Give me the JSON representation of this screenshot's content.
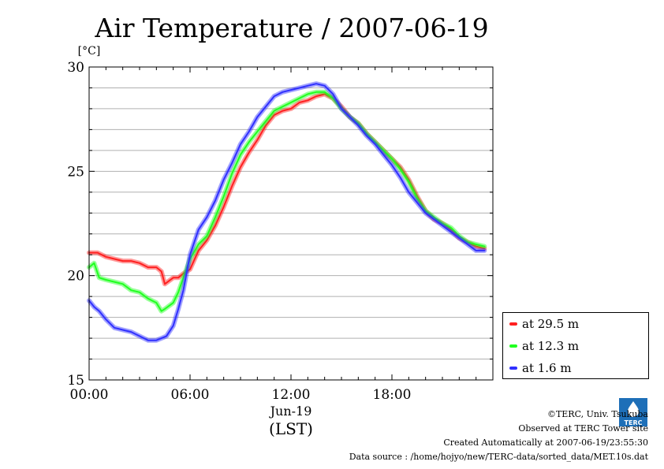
{
  "chart_data": {
    "type": "line",
    "title": "Air Temperature / 2007-06-19",
    "unit_label": "[°C]",
    "ylim": [
      15,
      30
    ],
    "yticks": [
      15,
      20,
      25,
      30
    ],
    "xlim": [
      0,
      24
    ],
    "xticks": [
      {
        "value": 0,
        "label": "00:00"
      },
      {
        "value": 6,
        "label": "06:00"
      },
      {
        "value": 12,
        "label": "12:00"
      },
      {
        "value": 18,
        "label": "18:00"
      }
    ],
    "date_label": "Jun-19",
    "time_zone_label": "(LST)",
    "grid": true,
    "legend_position": "bottom-right outside",
    "series": [
      {
        "name": "at 29.5 m",
        "color": "#ff2020",
        "x": [
          0,
          0.5,
          1,
          1.5,
          2,
          2.5,
          3,
          3.5,
          4,
          4.3,
          4.5,
          5,
          5.3,
          5.6,
          6,
          6.5,
          7,
          7.5,
          8,
          8.5,
          9,
          9.5,
          10,
          10.5,
          11,
          11.5,
          12,
          12.5,
          13,
          13.5,
          14,
          14.5,
          15,
          15.5,
          16,
          16.5,
          17,
          17.5,
          18,
          18.5,
          19,
          19.5,
          20,
          20.5,
          21,
          21.5,
          22,
          22.5,
          23,
          23.5
        ],
        "values": [
          21.1,
          21.1,
          20.9,
          20.8,
          20.7,
          20.7,
          20.6,
          20.4,
          20.4,
          20.2,
          19.6,
          19.9,
          19.9,
          20.1,
          20.3,
          21.2,
          21.7,
          22.4,
          23.3,
          24.3,
          25.2,
          25.9,
          26.5,
          27.2,
          27.7,
          27.9,
          28.0,
          28.3,
          28.4,
          28.6,
          28.7,
          28.5,
          28.1,
          27.6,
          27.3,
          26.8,
          26.4,
          26.0,
          25.6,
          25.2,
          24.6,
          23.8,
          23.1,
          22.7,
          22.5,
          22.2,
          21.8,
          21.6,
          21.4,
          21.3
        ]
      },
      {
        "name": "at 12.3 m",
        "color": "#20ff20",
        "x": [
          0,
          0.3,
          0.6,
          1,
          1.5,
          2,
          2.5,
          3,
          3.5,
          4,
          4.3,
          4.5,
          5,
          5.3,
          5.6,
          6,
          6.5,
          7,
          7.5,
          8,
          8.5,
          9,
          9.5,
          10,
          10.5,
          11,
          11.5,
          12,
          12.5,
          13,
          13.5,
          14,
          14.5,
          15,
          15.5,
          16,
          16.5,
          17,
          17.5,
          18,
          18.5,
          19,
          19.5,
          20,
          20.5,
          21,
          21.5,
          22,
          22.5,
          23,
          23.5
        ],
        "values": [
          20.4,
          20.6,
          19.9,
          19.8,
          19.7,
          19.6,
          19.3,
          19.2,
          18.9,
          18.7,
          18.3,
          18.4,
          18.7,
          19.2,
          19.9,
          20.8,
          21.5,
          21.9,
          22.8,
          23.8,
          24.9,
          25.8,
          26.4,
          26.9,
          27.4,
          27.9,
          28.1,
          28.3,
          28.5,
          28.7,
          28.8,
          28.8,
          28.5,
          28.0,
          27.6,
          27.3,
          26.8,
          26.4,
          26.0,
          25.6,
          25.1,
          24.5,
          23.7,
          23.1,
          22.8,
          22.5,
          22.3,
          21.9,
          21.6,
          21.5,
          21.4
        ]
      },
      {
        "name": "at 1.6 m",
        "color": "#3030ff",
        "x": [
          0,
          0.3,
          0.6,
          1,
          1.5,
          2,
          2.5,
          3,
          3.5,
          4,
          4.3,
          4.6,
          5,
          5.3,
          5.6,
          6,
          6.5,
          7,
          7.5,
          8,
          8.5,
          9,
          9.5,
          10,
          10.5,
          11,
          11.5,
          12,
          12.5,
          13,
          13.5,
          14,
          14.5,
          15,
          15.5,
          16,
          16.5,
          17,
          17.5,
          18,
          18.5,
          19,
          19.5,
          20,
          20.5,
          21,
          21.5,
          22,
          22.5,
          23,
          23.5
        ],
        "values": [
          18.8,
          18.5,
          18.3,
          17.9,
          17.5,
          17.4,
          17.3,
          17.1,
          16.9,
          16.9,
          17.0,
          17.1,
          17.6,
          18.4,
          19.3,
          21.0,
          22.2,
          22.8,
          23.6,
          24.6,
          25.4,
          26.3,
          26.9,
          27.6,
          28.1,
          28.6,
          28.8,
          28.9,
          29.0,
          29.1,
          29.2,
          29.1,
          28.7,
          28.0,
          27.6,
          27.2,
          26.7,
          26.3,
          25.8,
          25.3,
          24.7,
          24.0,
          23.5,
          23.0,
          22.7,
          22.4,
          22.1,
          21.8,
          21.5,
          21.2,
          21.2
        ]
      }
    ]
  },
  "footer": {
    "copyright": "©TERC, Univ. Tsukuba",
    "observed": "Observed at TERC Tower site",
    "created": "Created Automatically at 2007-06-19/23:55:30",
    "source": "Data source : /home/hojyo/new/TERC-data/sorted_data/MET.10s.dat"
  },
  "logo": {
    "text": "TERC",
    "icon": "terc-logo-icon",
    "color": "#1e6fb8"
  }
}
